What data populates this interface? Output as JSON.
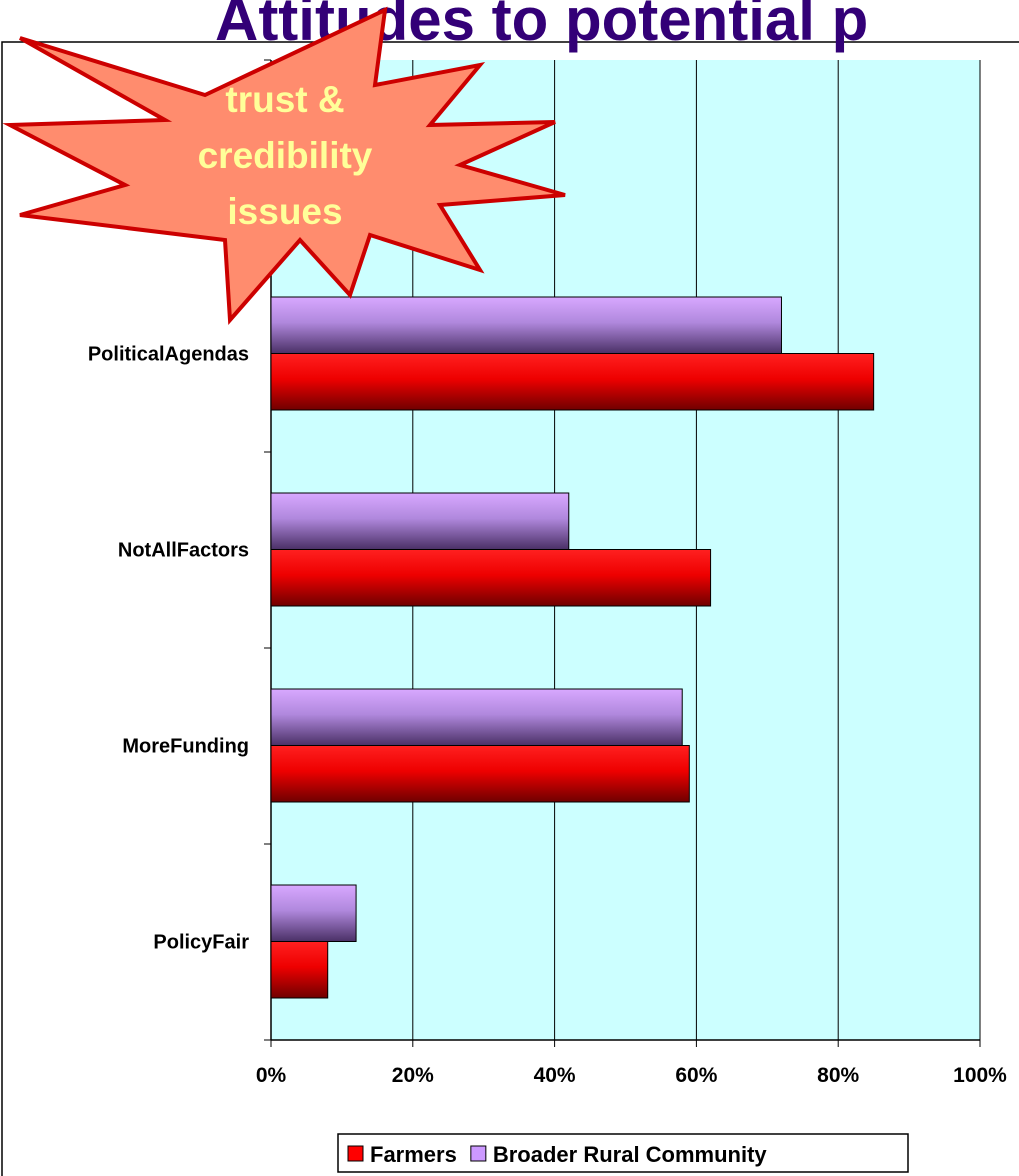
{
  "chart_data": {
    "type": "hbar",
    "title": "Attitudes to potential p",
    "annotation": [
      "trust &",
      "credibility",
      "issues"
    ],
    "categories": [
      null,
      "PoliticalAgendas",
      "NotAllFactors",
      "MoreFunding",
      "PolicyFair"
    ],
    "series": [
      {
        "name": "Farmers",
        "color": "#ff0000",
        "values": [
          null,
          85,
          62,
          59,
          8
        ]
      },
      {
        "name": "Broader Rural Community",
        "color": "#cc99ff",
        "values": [
          null,
          72,
          42,
          58,
          12
        ]
      }
    ],
    "xlim": [
      0,
      100
    ],
    "xticks": [
      {
        "value": 0,
        "label": "0%"
      },
      {
        "value": 20,
        "label": "20%"
      },
      {
        "value": 40,
        "label": "40%"
      },
      {
        "value": 60,
        "label": "60%"
      },
      {
        "value": 80,
        "label": "80%"
      },
      {
        "value": 100,
        "label": "100%"
      }
    ],
    "grid": true,
    "legend": "bottom"
  }
}
